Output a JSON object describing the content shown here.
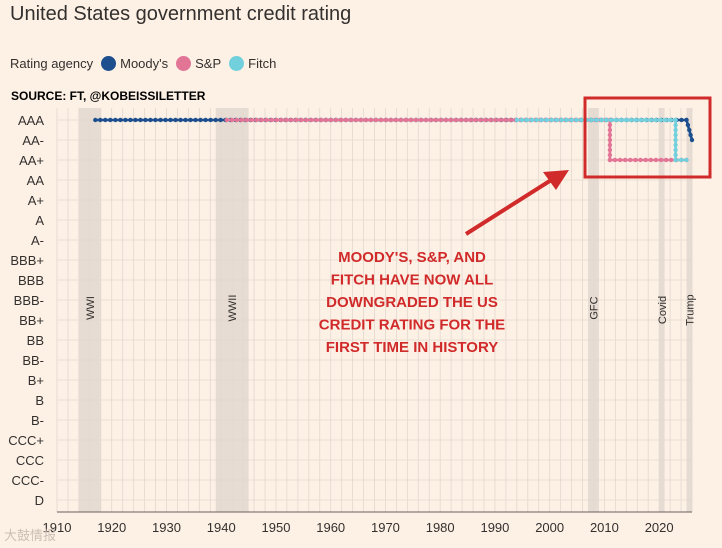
{
  "header": {
    "title": "United States government credit rating",
    "legend_label": "Rating agency",
    "source": "SOURCE: FT, @KOBEISSILETTER"
  },
  "watermark": "大鼓情报",
  "colors": {
    "moodys": "#1d4f8f",
    "sp": "#e27495",
    "fitch": "#72d0dd",
    "highlight": "#d12a2a",
    "shade": "#e6dcd3",
    "grid": "#e3d8ce"
  },
  "chart_data": {
    "type": "line",
    "title": "United States government credit rating",
    "y_categories": [
      "AAA",
      "AA-",
      "AA+",
      "AA",
      "A+",
      "A",
      "A-",
      "BBB+",
      "BBB",
      "BBB-",
      "BB+",
      "BB",
      "BB-",
      "B+",
      "B",
      "B-",
      "CCC+",
      "CCC",
      "CCC-",
      "D"
    ],
    "xlim": [
      1910,
      2026
    ],
    "x_ticks": [
      1910,
      1920,
      1930,
      1940,
      1950,
      1960,
      1970,
      1980,
      1990,
      2000,
      2010,
      2020
    ],
    "legend": "top-left",
    "grid": true,
    "series": [
      {
        "name": "Moody's",
        "points": [
          [
            1917,
            "AAA"
          ],
          [
            2025,
            "AAA"
          ],
          [
            2026,
            "AA-"
          ]
        ]
      },
      {
        "name": "S&P",
        "points": [
          [
            1941,
            "AAA"
          ],
          [
            2011,
            "AAA"
          ],
          [
            2011,
            "AA+"
          ],
          [
            2025,
            "AA+"
          ]
        ]
      },
      {
        "name": "Fitch",
        "points": [
          [
            1994,
            "AAA"
          ],
          [
            2023,
            "AAA"
          ],
          [
            2023,
            "AA+"
          ],
          [
            2025,
            "AA+"
          ]
        ]
      }
    ],
    "shaded_periods": [
      {
        "label": "WWI",
        "start": 1914,
        "end": 1918
      },
      {
        "label": "WWII",
        "start": 1939,
        "end": 1945
      },
      {
        "label": "GFC",
        "start": 2007,
        "end": 2009
      },
      {
        "label": "Covid",
        "start": 2020,
        "end": 2021
      },
      {
        "label": "Trump",
        "start": 2025,
        "end": 2026
      }
    ],
    "annotation": {
      "lines": [
        "MOODY'S, S&P, AND",
        "FITCH HAVE NOW ALL",
        "DOWNGRADED THE US",
        "CREDIT RATING FOR THE",
        "FIRST TIME IN HISTORY"
      ]
    }
  }
}
